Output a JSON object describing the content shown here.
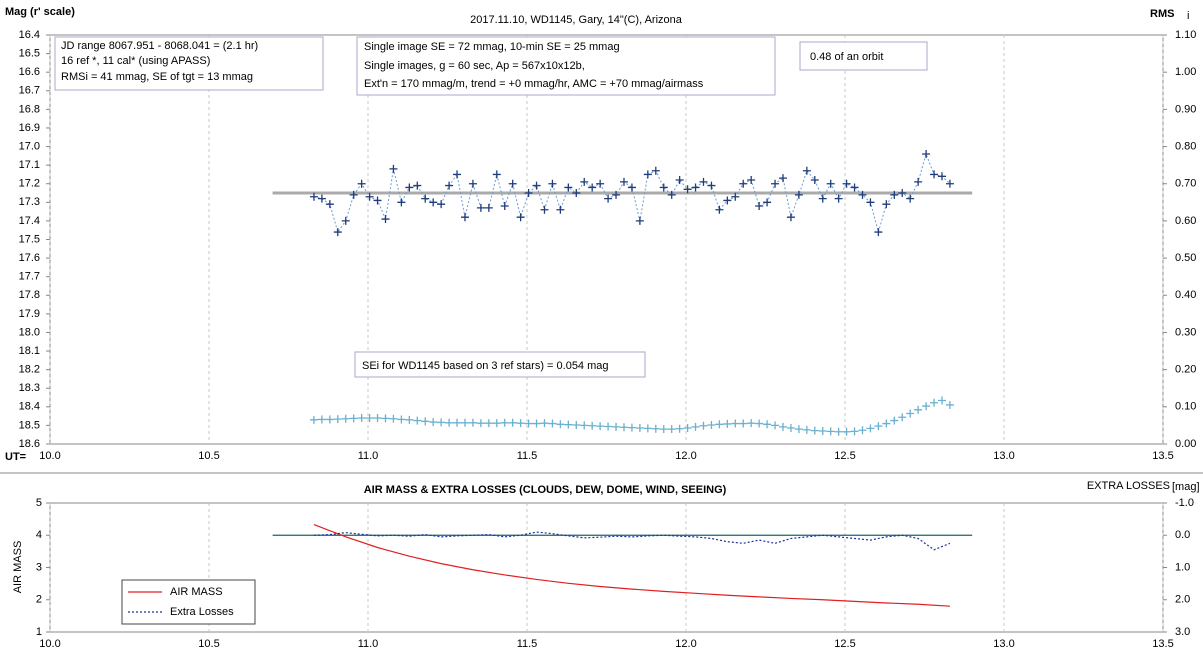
{
  "chart_data": [
    {
      "type": "line",
      "title": "2017.11.10,  WD1145, Gary, 14\"(C), Arizona",
      "y_label": "Mag (r' scale)",
      "y2_label": "RMS",
      "y2_label_sub": "i",
      "x_label": "UT=",
      "xlim": [
        10.0,
        13.5
      ],
      "xticks": [
        {
          "value": 10.0,
          "label": "10.0"
        },
        10.5,
        {
          "value": 11.0,
          "label": "11.0"
        },
        11.5,
        {
          "value": 12.0,
          "label": "12.0"
        },
        12.5,
        {
          "value": 13.0,
          "label": "13.0"
        },
        13.5
      ],
      "ylim": [
        16.4,
        18.6
      ],
      "y_inverted": true,
      "yticks": [
        16.4,
        16.5,
        16.6,
        16.7,
        16.8,
        16.9,
        {
          "value": 17.0,
          "label": "17.0"
        },
        17.1,
        17.2,
        17.3,
        17.4,
        17.5,
        17.6,
        17.7,
        17.8,
        17.9,
        {
          "value": 18.0,
          "label": "18.0"
        },
        18.1,
        18.2,
        18.3,
        18.4,
        18.5,
        18.6
      ],
      "y2lim": [
        0,
        1.1
      ],
      "y2ticks": [
        {
          "value": 1.1,
          "label": "1.10"
        },
        {
          "value": 1.0,
          "label": "1.00"
        },
        {
          "value": 0.9,
          "label": "0.90"
        },
        {
          "value": 0.8,
          "label": "0.80"
        },
        {
          "value": 0.7,
          "label": "0.70"
        },
        {
          "value": 0.6,
          "label": "0.60"
        },
        {
          "value": 0.5,
          "label": "0.50"
        },
        {
          "value": 0.4,
          "label": "0.40"
        },
        {
          "value": 0.3,
          "label": "0.30"
        },
        {
          "value": 0.2,
          "label": "0.20"
        },
        {
          "value": 0.1,
          "label": "0.10"
        },
        {
          "value": 0,
          "label": "0.00"
        }
      ],
      "grid": "x",
      "x": [
        10.83,
        10.855,
        10.88,
        10.905,
        10.93,
        10.955,
        10.98,
        11.005,
        11.03,
        11.055,
        11.08,
        11.105,
        11.13,
        11.155,
        11.18,
        11.205,
        11.23,
        11.255,
        11.28,
        11.305,
        11.33,
        11.355,
        11.38,
        11.405,
        11.43,
        11.455,
        11.48,
        11.505,
        11.53,
        11.555,
        11.58,
        11.605,
        11.63,
        11.655,
        11.68,
        11.705,
        11.73,
        11.755,
        11.78,
        11.805,
        11.83,
        11.855,
        11.88,
        11.905,
        11.93,
        11.955,
        11.98,
        12.005,
        12.03,
        12.055,
        12.08,
        12.105,
        12.13,
        12.155,
        12.18,
        12.205,
        12.23,
        12.255,
        12.28,
        12.305,
        12.33,
        12.355,
        12.38,
        12.405,
        12.43,
        12.455,
        12.48,
        12.505,
        12.53,
        12.555,
        12.58,
        12.605,
        12.63,
        12.655,
        12.68,
        12.705,
        12.73,
        12.755,
        12.78,
        12.805,
        12.83
      ],
      "series": [
        {
          "color": "#aaaaaa",
          "line_style": "solid",
          "x": [
            10.7,
            12.9
          ],
          "values": [
            17.25,
            17.25
          ]
        },
        {
          "color": "#1f3d7a",
          "line_style": "dotted",
          "marker": "+",
          "values": [
            17.27,
            17.28,
            17.31,
            17.46,
            17.4,
            17.26,
            17.2,
            17.27,
            17.29,
            17.39,
            17.12,
            17.3,
            17.22,
            17.21,
            17.28,
            17.3,
            17.31,
            17.21,
            17.15,
            17.38,
            17.2,
            17.33,
            17.33,
            17.15,
            17.32,
            17.2,
            17.38,
            17.25,
            17.21,
            17.34,
            17.2,
            17.34,
            17.22,
            17.25,
            17.19,
            17.22,
            17.2,
            17.28,
            17.26,
            17.19,
            17.22,
            17.4,
            17.15,
            17.13,
            17.22,
            17.26,
            17.18,
            17.23,
            17.22,
            17.19,
            17.21,
            17.34,
            17.29,
            17.27,
            17.2,
            17.18,
            17.32,
            17.3,
            17.2,
            17.17,
            17.38,
            17.26,
            17.13,
            17.18,
            17.28,
            17.2,
            17.28,
            17.2,
            17.22,
            17.26,
            17.3,
            17.46,
            17.31,
            17.26,
            17.25,
            17.28,
            17.19,
            17.04,
            17.15,
            17.16,
            17.2
          ]
        },
        {
          "color": "#6ab0d0",
          "line_style": "none",
          "marker": "+",
          "axis": "y2",
          "values": [
            0.065,
            0.066,
            0.066,
            0.067,
            0.068,
            0.069,
            0.07,
            0.07,
            0.07,
            0.069,
            0.068,
            0.066,
            0.065,
            0.063,
            0.061,
            0.059,
            0.058,
            0.057,
            0.057,
            0.057,
            0.057,
            0.056,
            0.056,
            0.056,
            0.057,
            0.057,
            0.056,
            0.055,
            0.055,
            0.056,
            0.055,
            0.053,
            0.052,
            0.051,
            0.05,
            0.049,
            0.048,
            0.047,
            0.046,
            0.045,
            0.044,
            0.043,
            0.042,
            0.041,
            0.04,
            0.04,
            0.041,
            0.043,
            0.046,
            0.049,
            0.051,
            0.053,
            0.054,
            0.055,
            0.055,
            0.056,
            0.055,
            0.053,
            0.05,
            0.046,
            0.043,
            0.04,
            0.038,
            0.036,
            0.035,
            0.034,
            0.033,
            0.033,
            0.034,
            0.037,
            0.042,
            0.048,
            0.055,
            0.063,
            0.072,
            0.082,
            0.092,
            0.102,
            0.111,
            0.117,
            0.105
          ]
        }
      ],
      "annotations": [
        {
          "lines": [
            "JD range  8067.951 - 8068.041 = (2.1 hr)",
            "16 ref *, 11 cal* (using APASS)",
            "RMSi = 41 mmag, SE of tgt = 13 mmag"
          ]
        },
        {
          "lines": [
            "Single image SE = 72 mmag, 10-min SE = 25 mmag",
            "Single images, g = 60 sec, Ap = 567x10x12b,",
            "Ext'n = 170 mmag/m, trend = +0 mmag/hr, AMC = +70 mmag/airmass"
          ]
        },
        {
          "lines": [
            "0.48 of an orbit"
          ]
        },
        {
          "lines": [
            "SEi for WD1145 based on 3 ref stars) = 0.054 mag"
          ]
        }
      ]
    },
    {
      "type": "line",
      "title": "AIR MASS & EXTRA LOSSES (CLOUDS, DEW, DOME, WIND, SEEING)",
      "y_label": "AIR MASS",
      "y2_label": "EXTRA LOSSES",
      "y2_unit": "[mag]",
      "xlim": [
        10.0,
        13.5
      ],
      "xticks": [
        {
          "value": 10.0,
          "label": "10.0"
        },
        10.5,
        {
          "value": 11.0,
          "label": "11.0"
        },
        11.5,
        {
          "value": 12.0,
          "label": "12.0"
        },
        12.5,
        {
          "value": 13.0,
          "label": "13.0"
        },
        13.5
      ],
      "ylim": [
        1,
        5
      ],
      "yticks": [
        1,
        2,
        3,
        4,
        5
      ],
      "y2lim": [
        -1,
        3
      ],
      "y2_inverted": true,
      "y2ticks": [
        {
          "value": -1,
          "label": "-1.0"
        },
        {
          "value": 0,
          "label": "0.0"
        },
        {
          "value": 1,
          "label": "1.0"
        },
        {
          "value": 2,
          "label": "2.0"
        },
        {
          "value": 3,
          "label": "3.0"
        }
      ],
      "grid": "x",
      "legend": "lower left",
      "series": [
        {
          "color": "#1a6666",
          "line_style": "solid",
          "axis": "y2",
          "x": [
            10.7,
            12.9
          ],
          "values": [
            0,
            0
          ]
        },
        {
          "name": "AIR MASS",
          "color": "#e02020",
          "line_style": "solid",
          "x": [
            10.83,
            10.93,
            11.03,
            11.13,
            11.23,
            11.33,
            11.43,
            11.53,
            11.63,
            11.73,
            11.83,
            11.93,
            12.03,
            12.13,
            12.23,
            12.33,
            12.43,
            12.53,
            12.63,
            12.73,
            12.83
          ],
          "values": [
            4.33,
            3.95,
            3.62,
            3.35,
            3.12,
            2.93,
            2.77,
            2.63,
            2.51,
            2.41,
            2.33,
            2.26,
            2.2,
            2.14,
            2.09,
            2.04,
            2.0,
            1.95,
            1.9,
            1.86,
            1.8
          ]
        },
        {
          "name": "Extra Losses",
          "color": "#1f2f9a",
          "line_style": "dotted",
          "axis": "y2",
          "x": [
            10.83,
            10.88,
            10.93,
            10.98,
            11.03,
            11.08,
            11.13,
            11.18,
            11.23,
            11.28,
            11.33,
            11.38,
            11.43,
            11.48,
            11.53,
            11.58,
            11.63,
            11.68,
            11.73,
            11.78,
            11.83,
            11.88,
            11.93,
            11.98,
            12.03,
            12.08,
            12.13,
            12.18,
            12.23,
            12.28,
            12.33,
            12.38,
            12.43,
            12.48,
            12.53,
            12.58,
            12.63,
            12.68,
            12.73,
            12.78,
            12.83
          ],
          "values": [
            0,
            -0.02,
            -0.08,
            -0.03,
            0.02,
            0,
            0.03,
            -0.02,
            0.05,
            0.02,
            0,
            -0.02,
            0.05,
            0,
            -0.1,
            -0.05,
            0.02,
            0.08,
            0.06,
            0.03,
            0.05,
            0.02,
            0,
            0.03,
            0.05,
            0.1,
            0.2,
            0.25,
            0.15,
            0.25,
            0.1,
            0.05,
            0,
            0.05,
            0.1,
            0.15,
            0.05,
            0,
            0.1,
            0.45,
            0.25
          ]
        }
      ]
    }
  ]
}
